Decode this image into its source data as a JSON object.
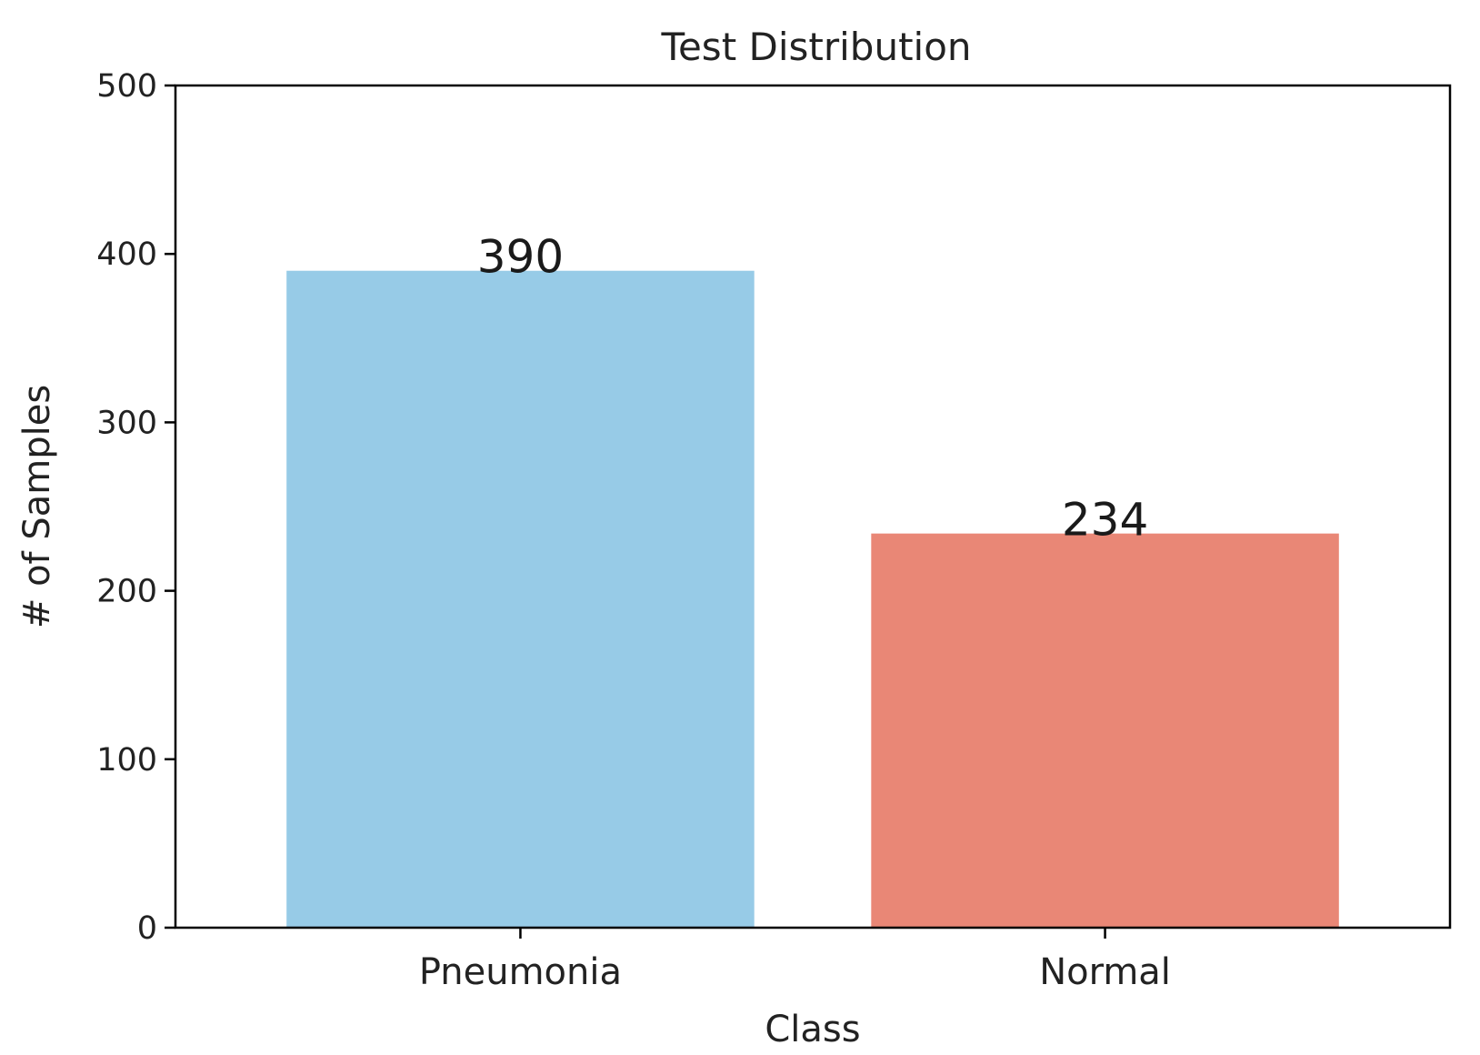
{
  "chart_data": {
    "type": "bar",
    "title": "Test Distribution",
    "xlabel": "Class",
    "ylabel": "# of Samples",
    "categories": [
      "Pneumonia",
      "Normal"
    ],
    "values": [
      390,
      234
    ],
    "data_labels": [
      "390",
      "234"
    ],
    "colors": [
      "#97cbe7",
      "#e98776"
    ],
    "ylim": [
      0,
      500
    ],
    "yticks": [
      0,
      100,
      200,
      300,
      400,
      500
    ],
    "ytick_labels": [
      "0",
      "100",
      "200",
      "300",
      "400",
      "500"
    ],
    "grid": false,
    "legend": "none"
  }
}
